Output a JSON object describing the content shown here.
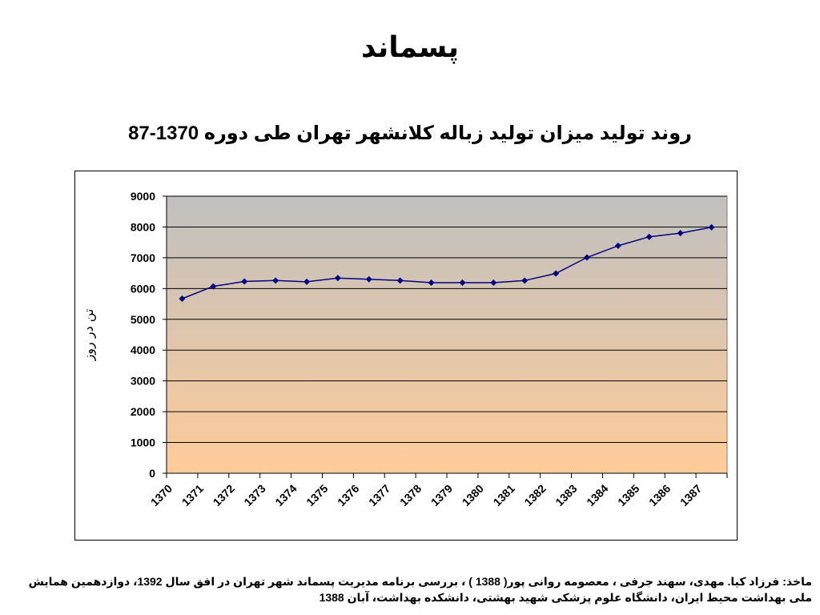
{
  "slide": {
    "title": "پسماند",
    "source_text": "ماخذ: فرزاد کیا. مهدی، سهند جرفی ، معصومه روانی پور( 1388 ) ، بررسی برنامه مدیریت پسماند شهر تهران در افق سال 1392، دوازدهمین همایش ملی بهداشت محیط ایران، دانشگاه علوم پزشکی شهید بهشتی، دانشکده بهداشت، آبان 1388"
  },
  "chart_data": {
    "type": "line",
    "title": "روند تولید میزان تولید زباله کلانشهر تهران طی دوره 1370-87",
    "xlabel": "",
    "ylabel": "تن در روز",
    "categories": [
      "1370",
      "1371",
      "1372",
      "1373",
      "1374",
      "1375",
      "1376",
      "1377",
      "1378",
      "1379",
      "1380",
      "1381",
      "1382",
      "1383",
      "1384",
      "1385",
      "1386",
      "1387"
    ],
    "series": [
      {
        "values": [
          5670,
          6070,
          6230,
          6260,
          6220,
          6340,
          6300,
          6260,
          6190,
          6190,
          6190,
          6260,
          6490,
          7010,
          7390,
          7680,
          7800,
          7990
        ]
      }
    ],
    "ylim": [
      0,
      9000
    ],
    "yticks": [
      0,
      1000,
      2000,
      3000,
      4000,
      5000,
      6000,
      7000,
      8000,
      9000
    ],
    "grid": true,
    "legend": "none",
    "colors": {
      "line": "#000080",
      "marker": "#000080",
      "plot_top": "#c0c0c0",
      "plot_bottom": "#ffcc99",
      "gridline": "#000000"
    }
  }
}
